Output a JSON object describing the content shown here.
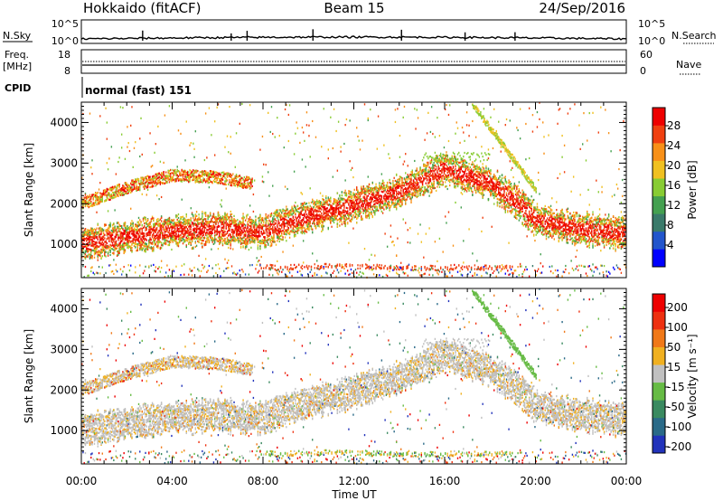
{
  "header": {
    "title_left": "Hokkaido (fitACF)",
    "title_center": "Beam 15",
    "title_right": "24/Sep/2016"
  },
  "top_panels": {
    "nsky_label": "N.Sky",
    "nsearch_label": "N.Search",
    "nsky_ticks": [
      "10^5",
      "10^0"
    ],
    "nsearch_ticks": [
      "10^5",
      "10^0"
    ],
    "freq_label_line1": "Freq.",
    "freq_label_line2": "[MHz]",
    "freq_ticks": [
      "18",
      "8"
    ],
    "nave_label": "Nave",
    "nave_ticks": [
      "60",
      "0"
    ],
    "cpid_label": "CPID",
    "cpid_text": "normal (fast) 151"
  },
  "chart_data": [
    {
      "type": "heatmap",
      "panel": "power",
      "ylabel": "Slant Range [km]",
      "ylim": [
        180,
        4500
      ],
      "yticks": [
        "1000",
        "2000",
        "3000",
        "4000"
      ],
      "xlim_hours": [
        0,
        24
      ],
      "colorbar": {
        "label": "Power [dB]",
        "ticks": [
          "4",
          "8",
          "12",
          "16",
          "20",
          "24",
          "28"
        ],
        "colors": [
          "#0000ff",
          "#2255cc",
          "#3a7a6a",
          "#44a050",
          "#88cc33",
          "#f0c020",
          "#f89018",
          "#f04010",
          "#ee0000"
        ]
      },
      "bands": [
        {
          "name": "lower",
          "points": [
            [
              0,
              1000
            ],
            [
              2,
              1180
            ],
            [
              4,
              1320
            ],
            [
              6,
              1380
            ],
            [
              8,
              1300
            ],
            [
              10,
              1700
            ],
            [
              12,
              1950
            ],
            [
              14,
              2300
            ],
            [
              16,
              2850
            ],
            [
              18,
              2500
            ],
            [
              19,
              2100
            ],
            [
              20,
              1600
            ],
            [
              22,
              1380
            ],
            [
              24,
              1260
            ]
          ]
        },
        {
          "name": "upper",
          "points": [
            [
              0,
              2000
            ],
            [
              2,
              2400
            ],
            [
              4,
              2700
            ],
            [
              6,
              2650
            ],
            [
              7.5,
              2500
            ]
          ]
        },
        {
          "name": "near",
          "points": [
            [
              7.8,
              450
            ],
            [
              9,
              430
            ],
            [
              11,
              470
            ],
            [
              13,
              440
            ],
            [
              15,
              420
            ],
            [
              17,
              430
            ],
            [
              19,
              420
            ]
          ]
        }
      ]
    },
    {
      "type": "heatmap",
      "panel": "velocity",
      "ylabel": "Slant Range [km]",
      "ylim": [
        180,
        4500
      ],
      "yticks": [
        "1000",
        "2000",
        "3000",
        "4000"
      ],
      "xlabel": "Time UT",
      "xticks": [
        "00:00",
        "04:00",
        "08:00",
        "12:00",
        "16:00",
        "20:00",
        "00:00"
      ],
      "colorbar": {
        "label": "Velocity [m s⁻¹]",
        "ticks": [
          "200",
          "100",
          "50",
          "15",
          "-15",
          "-50",
          "-100",
          "-200"
        ],
        "colors": [
          "#2233bb",
          "#2a6a88",
          "#3a8a60",
          "#66bb44",
          "#c0c0c0",
          "#f0b020",
          "#f07818",
          "#ee3010",
          "#ee0000"
        ]
      }
    }
  ]
}
